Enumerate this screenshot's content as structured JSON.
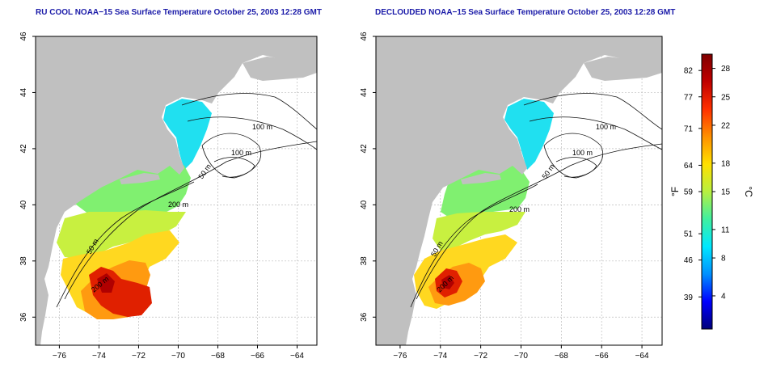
{
  "panels": [
    {
      "id": "left",
      "title": "RU COOL NOAA−15 Sea Surface Temperature October 25, 2003 12:28 GMT",
      "contour_labels": [
        "100 m",
        "100 m",
        "50 m",
        "200 m",
        "50 m",
        "200 m"
      ]
    },
    {
      "id": "right",
      "title": "DECLOUDED NOAA−15 Sea Surface Temperature October 25, 2003 12:28 GMT",
      "contour_labels": [
        "100 m",
        "100 m",
        "50 m",
        "200 m",
        "50 m",
        "200 m"
      ]
    }
  ],
  "axes": {
    "lon_ticks": [
      "−76",
      "−74",
      "−72",
      "−70",
      "−68",
      "−66",
      "−64"
    ],
    "lat_ticks": [
      "36",
      "38",
      "40",
      "42",
      "44",
      "46"
    ],
    "lon_range": [
      -77.2,
      -63.0
    ],
    "lat_range": [
      35.0,
      46.0
    ]
  },
  "colorbar": {
    "unit_f": "°F",
    "unit_c": "°C",
    "f_ticks": [
      "82",
      "77",
      "71",
      "64",
      "59",
      "51",
      "46",
      "39"
    ],
    "c_ticks": [
      "28",
      "25",
      "22",
      "18",
      "15",
      "11",
      "8",
      "4"
    ],
    "colors": [
      "#00007a",
      "#0000ff",
      "#0090ff",
      "#00e8ff",
      "#40f0a0",
      "#b8f040",
      "#ffe000",
      "#ff9000",
      "#ff3000",
      "#c00000",
      "#800000"
    ]
  },
  "colors": {
    "land": "#c0c0c0",
    "title": "#1a1aa8",
    "grid": "#bdbdbd"
  }
}
